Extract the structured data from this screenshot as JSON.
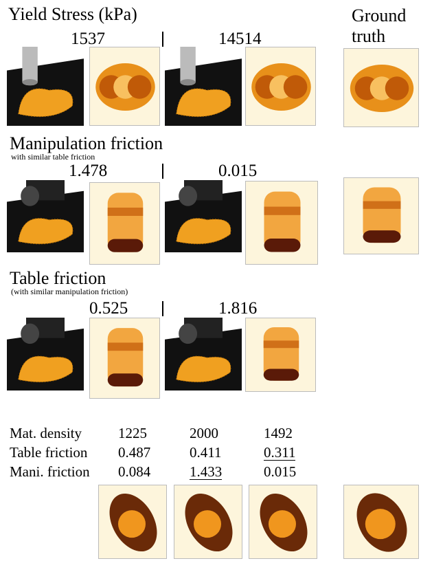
{
  "sections": [
    {
      "title": "Yield Stress (kPa)",
      "values": [
        "1537",
        "14514"
      ]
    },
    {
      "title": "Manipulation friction",
      "subtitle": "with similar table friction",
      "values": [
        "1.478",
        "0.015"
      ]
    },
    {
      "title": "Table friction",
      "subtitle": "(with similar manipulation friction)",
      "values": [
        "0.525",
        "1.816"
      ]
    }
  ],
  "ground_truth_label": "Ground truth",
  "table": {
    "rows": [
      [
        "Mat. density",
        "1225",
        "2000",
        "1492"
      ],
      [
        "Table friction",
        "0.487",
        "0.411",
        "0.311"
      ],
      [
        "Mani. friction",
        "0.084",
        "1.433",
        "0.015"
      ]
    ]
  }
}
